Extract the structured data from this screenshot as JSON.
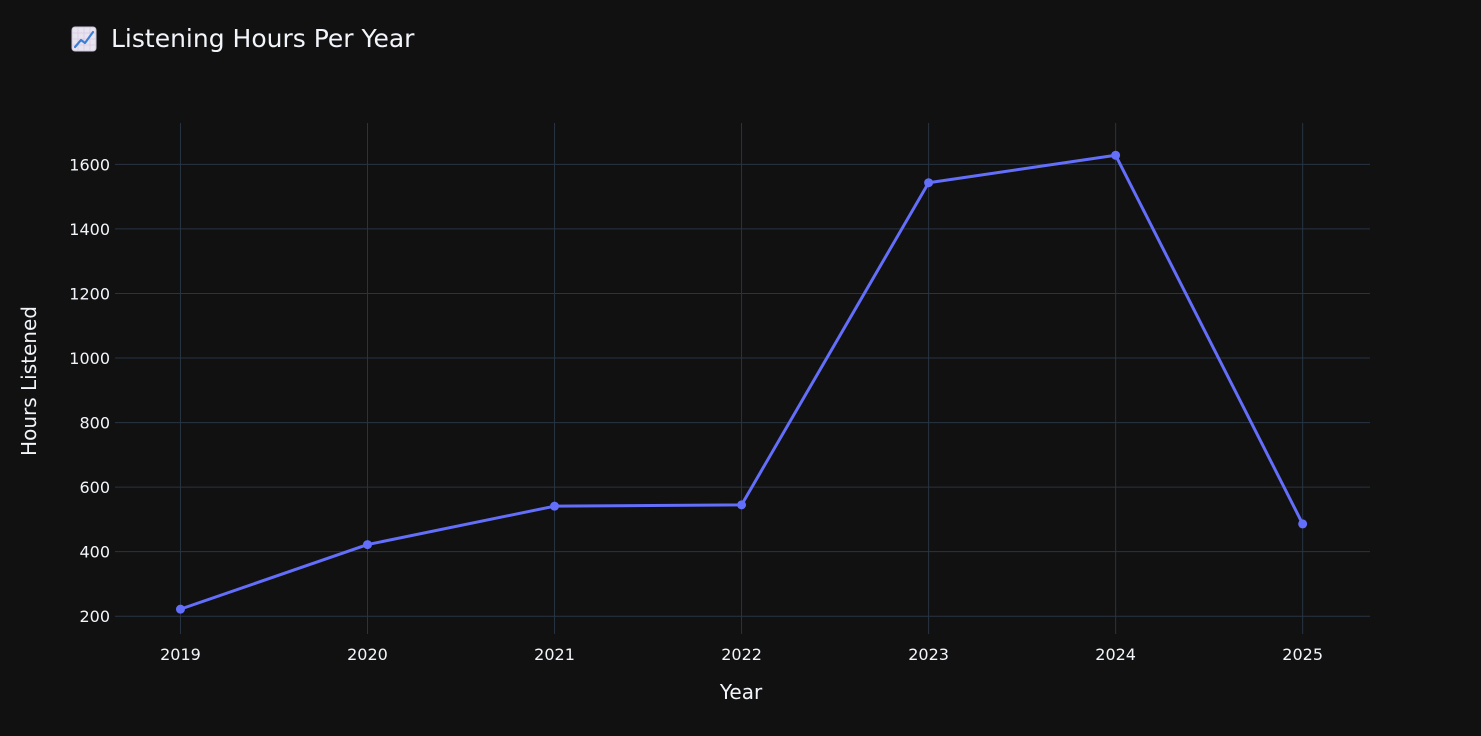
{
  "title": "Listening Hours Per Year",
  "colors": {
    "background": "#111111",
    "grid": "#283442",
    "text": "#f2f5fa",
    "series": "#636efa"
  },
  "chart_data": {
    "type": "line",
    "title": "Listening Hours Per Year",
    "title_icon": "chart-increasing-icon",
    "xlabel": "Year",
    "ylabel": "Hours Listened",
    "x": [
      2019,
      2020,
      2021,
      2022,
      2023,
      2024,
      2025
    ],
    "x_tick_labels": [
      "2019",
      "2020",
      "2021",
      "2022",
      "2023",
      "2024",
      "2025"
    ],
    "y_ticks": [
      200,
      400,
      600,
      800,
      1000,
      1200,
      1400,
      1600
    ],
    "y_tick_labels": [
      "200",
      "400",
      "600",
      "800",
      "1000",
      "1200",
      "1400",
      "1600"
    ],
    "xlim": [
      2018.65,
      2025.36
    ],
    "ylim": [
      145,
      1728
    ],
    "grid": true,
    "markers": true,
    "series": [
      {
        "values": [
          222,
          422,
          541,
          545,
          1543,
          1628,
          486
        ]
      }
    ]
  }
}
